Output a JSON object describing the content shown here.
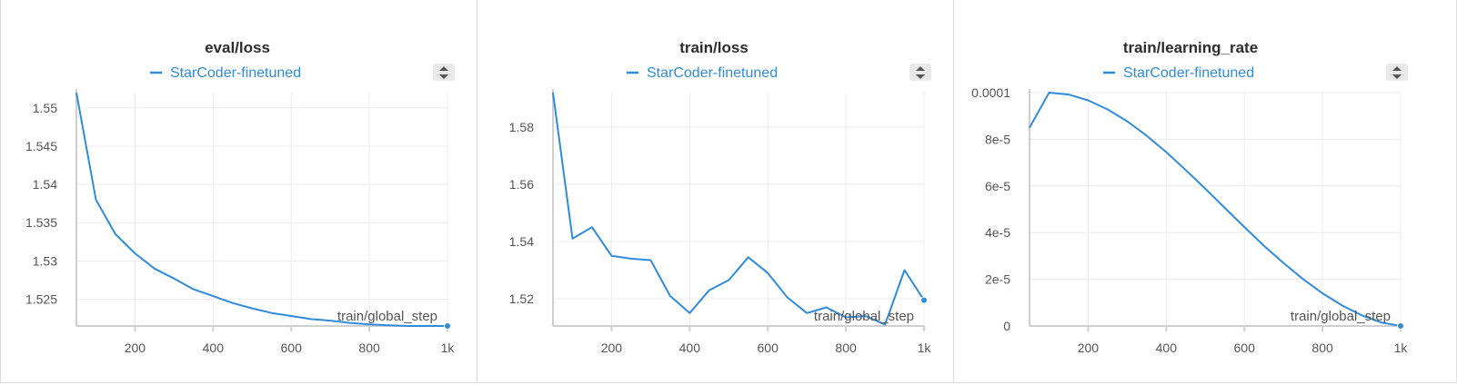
{
  "colors": {
    "series": "#2f8bdc",
    "grid": "#ececec",
    "axis": "#cfcfcf",
    "toggle_bg": "#e9e9e9"
  },
  "legend_toggle_icon": "sort-arrows-icon",
  "chart_data": [
    {
      "type": "line",
      "title": "eval/loss",
      "xlabel": "train/global_step",
      "ylabel": "",
      "grid": true,
      "legend": "top-center",
      "xlim": [
        50,
        1000
      ],
      "ylim": [
        1.5215,
        1.552
      ],
      "xticks": [
        200,
        400,
        600,
        800,
        1000
      ],
      "xtick_labels": [
        "200",
        "400",
        "600",
        "800",
        "1k"
      ],
      "yticks": [
        1.525,
        1.53,
        1.535,
        1.54,
        1.545,
        1.55
      ],
      "ytick_labels": [
        "1.525",
        "1.53",
        "1.535",
        "1.54",
        "1.545",
        "1.55"
      ],
      "series": [
        {
          "name": "StarCoder-finetuned",
          "x": [
            50,
            100,
            150,
            200,
            250,
            300,
            350,
            400,
            450,
            500,
            550,
            600,
            650,
            700,
            750,
            800,
            850,
            900,
            950,
            1000
          ],
          "y": [
            1.552,
            1.538,
            1.5335,
            1.531,
            1.529,
            1.5277,
            1.5263,
            1.5254,
            1.5245,
            1.5238,
            1.5232,
            1.5228,
            1.5224,
            1.5222,
            1.5219,
            1.5217,
            1.5216,
            1.5215,
            1.5215,
            1.5215
          ]
        }
      ]
    },
    {
      "type": "line",
      "title": "train/loss",
      "xlabel": "train/global_step",
      "ylabel": "",
      "grid": true,
      "legend": "top-center",
      "xlim": [
        50,
        1000
      ],
      "ylim": [
        1.5105,
        1.592
      ],
      "xticks": [
        200,
        400,
        600,
        800,
        1000
      ],
      "xtick_labels": [
        "200",
        "400",
        "600",
        "800",
        "1k"
      ],
      "yticks": [
        1.52,
        1.54,
        1.56,
        1.58
      ],
      "ytick_labels": [
        "1.52",
        "1.54",
        "1.56",
        "1.58"
      ],
      "series": [
        {
          "name": "StarCoder-finetuned",
          "x": [
            50,
            100,
            150,
            200,
            250,
            300,
            350,
            400,
            450,
            500,
            550,
            600,
            650,
            700,
            750,
            800,
            850,
            900,
            950,
            1000
          ],
          "y": [
            1.592,
            1.541,
            1.545,
            1.535,
            1.534,
            1.5335,
            1.521,
            1.515,
            1.523,
            1.5265,
            1.5345,
            1.529,
            1.5205,
            1.515,
            1.517,
            1.5135,
            1.514,
            1.511,
            1.53,
            1.5195
          ]
        }
      ]
    },
    {
      "type": "line",
      "title": "train/learning_rate",
      "xlabel": "train/global_step",
      "ylabel": "",
      "grid": true,
      "legend": "top-center",
      "xlim": [
        50,
        1000
      ],
      "ylim": [
        0,
        0.0001
      ],
      "xticks": [
        200,
        400,
        600,
        800,
        1000
      ],
      "xtick_labels": [
        "200",
        "400",
        "600",
        "800",
        "1k"
      ],
      "yticks": [
        0,
        2e-05,
        4e-05,
        6e-05,
        8e-05,
        0.0001
      ],
      "ytick_labels": [
        "0",
        "2e-5",
        "4e-5",
        "6e-5",
        "8e-5",
        "0.0001"
      ],
      "series": [
        {
          "name": "StarCoder-finetuned",
          "x": [
            50,
            100,
            150,
            200,
            250,
            300,
            350,
            400,
            450,
            500,
            550,
            600,
            650,
            700,
            750,
            800,
            850,
            900,
            950,
            1000
          ],
          "y": [
            8.5e-05,
            0.0001,
            9.92e-05,
            9.67e-05,
            9.28e-05,
            8.77e-05,
            8.15e-05,
            7.45e-05,
            6.68e-05,
            5.88e-05,
            5.06e-05,
            4.24e-05,
            3.44e-05,
            2.7e-05,
            2.01e-05,
            1.4e-05,
            8.8e-06,
            4.6e-06,
            1.5e-06,
            0.0
          ]
        }
      ]
    }
  ]
}
